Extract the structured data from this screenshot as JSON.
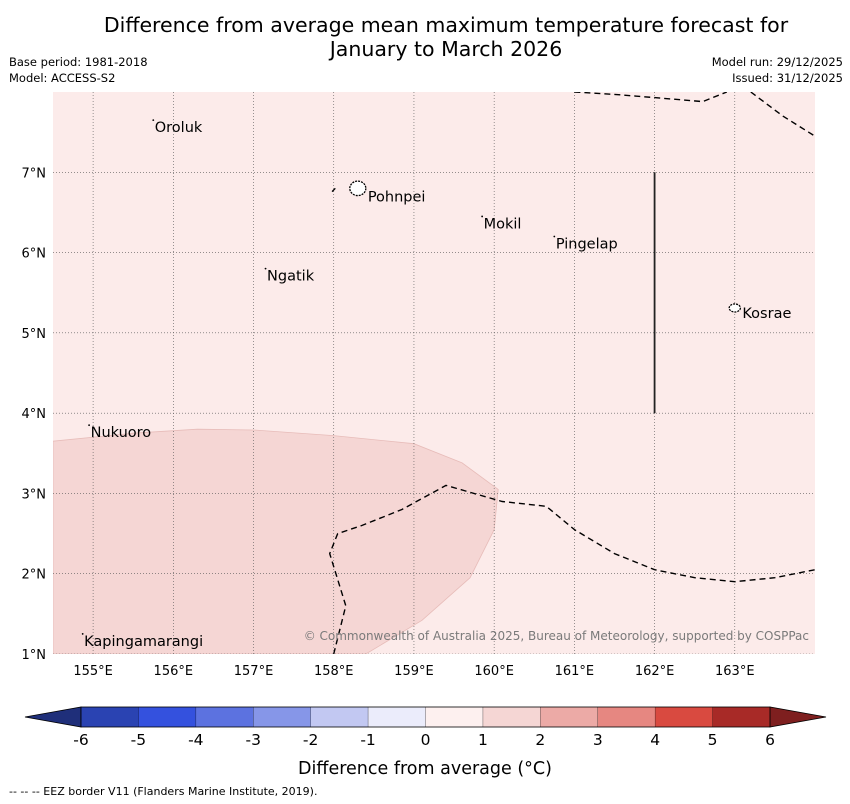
{
  "title_line1": "Difference from average mean maximum temperature forecast for",
  "title_line2": "January to March 2026",
  "base_period": "Base period: 1981-2018",
  "model": "Model: ACCESS-S2",
  "model_run": "Model run: 29/12/2025",
  "issued": "Issued: 31/12/2025",
  "copyright": "© Commonwealth of Australia 2025, Bureau of Meteorology, supported by COSPPac",
  "footnote": "--  --  -- EEZ border V11 (Flanders Marine Institute, 2019).",
  "map": {
    "lon_range": [
      154.5,
      164.0
    ],
    "lat_range": [
      1.0,
      8.0
    ],
    "lon_ticks": [
      155,
      156,
      157,
      158,
      159,
      160,
      161,
      162,
      163
    ],
    "lon_labels": [
      "155°E",
      "156°E",
      "157°E",
      "158°E",
      "159°E",
      "160°E",
      "161°E",
      "162°E",
      "163°E"
    ],
    "lat_ticks": [
      1,
      2,
      3,
      4,
      5,
      6,
      7
    ],
    "lat_labels": [
      "1°N",
      "2°N",
      "3°N",
      "4°N",
      "5°N",
      "6°N",
      "7°N"
    ],
    "background_category": "0 to 1",
    "background_color": "#fcebea",
    "regions": [
      {
        "category": "1 to 2",
        "color": "#f5d6d4",
        "outline": [
          [
            154.5,
            3.65
          ],
          [
            155.5,
            3.75
          ],
          [
            156.3,
            3.8
          ],
          [
            157.0,
            3.79
          ],
          [
            158.0,
            3.72
          ],
          [
            159.0,
            3.62
          ],
          [
            159.6,
            3.38
          ],
          [
            160.05,
            3.05
          ],
          [
            160.0,
            2.55
          ],
          [
            159.7,
            1.95
          ],
          [
            159.1,
            1.42
          ],
          [
            158.4,
            1.0
          ],
          [
            154.5,
            1.0
          ]
        ]
      }
    ],
    "eez_borders": [
      [
        [
          158.0,
          1.0
        ],
        [
          158.15,
          1.6
        ],
        [
          157.95,
          2.25
        ],
        [
          158.05,
          2.5
        ],
        [
          158.35,
          2.6
        ],
        [
          158.85,
          2.8
        ],
        [
          159.4,
          3.1
        ],
        [
          160.1,
          2.9
        ],
        [
          160.65,
          2.84
        ],
        [
          161.0,
          2.55
        ],
        [
          161.5,
          2.25
        ],
        [
          162.0,
          2.05
        ],
        [
          162.5,
          1.95
        ],
        [
          163.0,
          1.9
        ],
        [
          163.5,
          1.95
        ],
        [
          164.0,
          2.05
        ]
      ],
      [
        [
          161.0,
          8.0
        ],
        [
          161.5,
          7.97
        ],
        [
          162.0,
          7.93
        ],
        [
          162.6,
          7.88
        ],
        [
          162.9,
          8.0
        ]
      ],
      [
        [
          163.2,
          8.0
        ],
        [
          163.6,
          7.7
        ],
        [
          164.0,
          7.45
        ]
      ],
      [
        [
          157.98,
          6.76
        ],
        [
          158.02,
          6.8
        ]
      ]
    ],
    "divider_line": {
      "lon": 162.0,
      "lat_from": 4.0,
      "lat_to": 7.0
    },
    "places": [
      {
        "name": "Oroluk",
        "lon": 155.75,
        "lat": 7.65
      },
      {
        "name": "Pohnpei",
        "lon": 158.3,
        "lat": 6.8,
        "island": true,
        "island_r": [
          0.1,
          0.09
        ]
      },
      {
        "name": "Mokil",
        "lon": 159.85,
        "lat": 6.45
      },
      {
        "name": "Pingelap",
        "lon": 160.75,
        "lat": 6.2
      },
      {
        "name": "Ngatik",
        "lon": 157.15,
        "lat": 5.8
      },
      {
        "name": "Kosrae",
        "lon": 163.0,
        "lat": 5.31,
        "island": true,
        "island_r": [
          0.07,
          0.05
        ]
      },
      {
        "name": "Nukuoro",
        "lon": 154.95,
        "lat": 3.85
      },
      {
        "name": "Kapingamarangi",
        "lon": 154.87,
        "lat": 1.25
      }
    ]
  },
  "colorbar": {
    "bounds": [
      -6,
      -5,
      -4,
      -3,
      -2,
      -1,
      0,
      1,
      2,
      3,
      4,
      5,
      6
    ],
    "tick_labels": [
      "-6",
      "-5",
      "-4",
      "-3",
      "-2",
      "-1",
      "0",
      "1",
      "2",
      "3",
      "4",
      "5",
      "6"
    ],
    "colors": [
      "#2a43b2",
      "#3451de",
      "#5c72e0",
      "#8696e8",
      "#c2c8f2",
      "#ebecfb",
      "#fdf0ef",
      "#f5d6d4",
      "#ecaaa6",
      "#e68781",
      "#d94a40",
      "#a82a27"
    ],
    "extend_low_color": "#1f2f7a",
    "extend_high_color": "#7e1f1f",
    "label": "Difference from average (°C)"
  }
}
